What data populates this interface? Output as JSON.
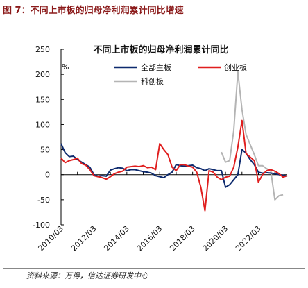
{
  "figure": {
    "title": "图 7：不同上市板的归母净利润累计同比增速",
    "source": "资料来源：万得，信达证券研发中心"
  },
  "chart_data": {
    "type": "line",
    "title": "不同上市板的归母净利润累计同比",
    "ylabel_unit": "%",
    "ylim": [
      -100,
      250
    ],
    "yticks": [
      -100,
      -50,
      0,
      50,
      100,
      150,
      200,
      250
    ],
    "xlim": [
      2010.0,
      2023.75
    ],
    "xticks": [
      {
        "x": 2010.0,
        "label": "2010/03"
      },
      {
        "x": 2012.0,
        "label": "2012/03"
      },
      {
        "x": 2014.0,
        "label": "2014/03"
      },
      {
        "x": 2016.0,
        "label": "2016/03"
      },
      {
        "x": 2018.0,
        "label": "2018/03"
      },
      {
        "x": 2020.0,
        "label": "2020/03"
      },
      {
        "x": 2022.0,
        "label": "2022/03"
      }
    ],
    "grid": false,
    "legend_position": "top",
    "series": [
      {
        "name": "全部主板",
        "color": "#0d2a6e",
        "points": [
          [
            2010.0,
            62
          ],
          [
            2010.25,
            44
          ],
          [
            2010.5,
            36
          ],
          [
            2010.75,
            37
          ],
          [
            2011.0,
            30
          ],
          [
            2011.25,
            25
          ],
          [
            2011.5,
            20
          ],
          [
            2011.75,
            15
          ],
          [
            2012.0,
            0
          ],
          [
            2012.25,
            -3
          ],
          [
            2012.5,
            -2
          ],
          [
            2012.75,
            -3
          ],
          [
            2013.0,
            9
          ],
          [
            2013.25,
            12
          ],
          [
            2013.5,
            14
          ],
          [
            2013.75,
            13
          ],
          [
            2014.0,
            8
          ],
          [
            2014.25,
            10
          ],
          [
            2014.5,
            10
          ],
          [
            2014.75,
            8
          ],
          [
            2015.0,
            6
          ],
          [
            2015.25,
            5
          ],
          [
            2015.5,
            3
          ],
          [
            2015.75,
            -2
          ],
          [
            2016.0,
            -4
          ],
          [
            2016.25,
            -6
          ],
          [
            2016.5,
            0
          ],
          [
            2016.75,
            5
          ],
          [
            2017.0,
            20
          ],
          [
            2017.25,
            18
          ],
          [
            2017.5,
            17
          ],
          [
            2017.75,
            18
          ],
          [
            2018.0,
            19
          ],
          [
            2018.25,
            14
          ],
          [
            2018.5,
            12
          ],
          [
            2018.75,
            8
          ],
          [
            2019.0,
            12
          ],
          [
            2019.25,
            10
          ],
          [
            2019.5,
            8
          ],
          [
            2019.75,
            8
          ],
          [
            2020.0,
            -25
          ],
          [
            2020.25,
            -20
          ],
          [
            2020.5,
            -10
          ],
          [
            2020.75,
            0
          ],
          [
            2021.0,
            50
          ],
          [
            2021.25,
            43
          ],
          [
            2021.5,
            30
          ],
          [
            2021.75,
            20
          ],
          [
            2022.0,
            5
          ],
          [
            2022.25,
            3
          ],
          [
            2022.5,
            4
          ],
          [
            2022.75,
            3
          ],
          [
            2023.0,
            2
          ],
          [
            2023.25,
            0
          ],
          [
            2023.5,
            -1
          ],
          [
            2023.75,
            -3
          ]
        ]
      },
      {
        "name": "创业板",
        "color": "#e01e1e",
        "points": [
          [
            2010.0,
            33
          ],
          [
            2010.25,
            24
          ],
          [
            2010.5,
            28
          ],
          [
            2010.75,
            30
          ],
          [
            2011.0,
            33
          ],
          [
            2011.25,
            22
          ],
          [
            2011.5,
            19
          ],
          [
            2011.75,
            10
          ],
          [
            2012.0,
            -2
          ],
          [
            2012.25,
            -4
          ],
          [
            2012.5,
            -6
          ],
          [
            2012.75,
            -9
          ],
          [
            2013.0,
            -4
          ],
          [
            2013.25,
            2
          ],
          [
            2013.5,
            5
          ],
          [
            2013.75,
            7
          ],
          [
            2014.0,
            15
          ],
          [
            2014.25,
            16
          ],
          [
            2014.5,
            17
          ],
          [
            2014.75,
            16
          ],
          [
            2015.0,
            18
          ],
          [
            2015.25,
            14
          ],
          [
            2015.5,
            15
          ],
          [
            2015.75,
            10
          ],
          [
            2016.0,
            62
          ],
          [
            2016.25,
            50
          ],
          [
            2016.5,
            40
          ],
          [
            2016.75,
            15
          ],
          [
            2017.0,
            8
          ],
          [
            2017.25,
            20
          ],
          [
            2017.5,
            20
          ],
          [
            2017.75,
            17
          ],
          [
            2018.0,
            15
          ],
          [
            2018.25,
            5
          ],
          [
            2018.5,
            -25
          ],
          [
            2018.75,
            -72
          ],
          [
            2019.0,
            8
          ],
          [
            2019.25,
            5
          ],
          [
            2019.5,
            -5
          ],
          [
            2019.75,
            -10
          ],
          [
            2020.0,
            -5
          ],
          [
            2020.25,
            -3
          ],
          [
            2020.5,
            15
          ],
          [
            2020.75,
            55
          ],
          [
            2021.0,
            108
          ],
          [
            2021.25,
            42
          ],
          [
            2021.5,
            35
          ],
          [
            2021.75,
            28
          ],
          [
            2022.0,
            -15
          ],
          [
            2022.25,
            0
          ],
          [
            2022.5,
            8
          ],
          [
            2022.75,
            10
          ],
          [
            2023.0,
            7
          ],
          [
            2023.25,
            2
          ],
          [
            2023.5,
            -5
          ],
          [
            2023.75,
            -2
          ]
        ]
      },
      {
        "name": "科创板",
        "color": "#b4b4b4",
        "points": [
          [
            2019.75,
            45
          ],
          [
            2020.0,
            25
          ],
          [
            2020.25,
            28
          ],
          [
            2020.5,
            88
          ],
          [
            2020.75,
            205
          ],
          [
            2021.0,
            130
          ],
          [
            2021.25,
            80
          ],
          [
            2021.5,
            60
          ],
          [
            2021.75,
            40
          ],
          [
            2022.0,
            18
          ],
          [
            2022.25,
            18
          ],
          [
            2022.5,
            12
          ],
          [
            2022.75,
            8
          ],
          [
            2023.0,
            -50
          ],
          [
            2023.25,
            -42
          ],
          [
            2023.5,
            -40
          ]
        ]
      }
    ]
  }
}
